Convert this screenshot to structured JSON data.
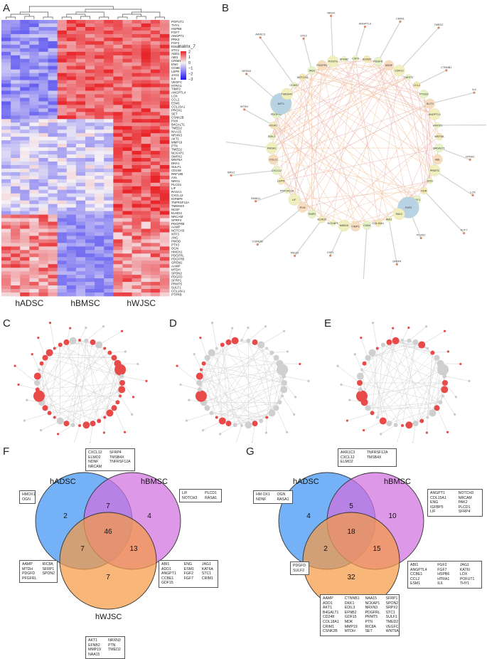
{
  "panels": {
    "A": "A",
    "B": "B",
    "C": "C",
    "D": "D",
    "E": "E",
    "F": "F",
    "G": "G"
  },
  "heatmap": {
    "legend_title": "matrix_7",
    "legend_ticks": [
      "2",
      "1",
      "0",
      "−1",
      "−2",
      "−3"
    ],
    "groups": [
      "hADSC",
      "hBMSC",
      "hWJSC"
    ],
    "genes": [
      "POFUT1",
      "THY1",
      "HSPB6",
      "FGF7",
      "ANGPT1",
      "PRK2",
      "FGF2",
      "EDIL3",
      "STC1",
      "ADD1",
      "ABI1",
      "CRIM1",
      "ENG",
      "CCBE1",
      "LEPR",
      "JAG1",
      "IL6",
      "VEGFC",
      "HTRA1",
      "TIMP2",
      "ANGPTL4",
      "LOX",
      "CCL2",
      "ESM1",
      "COL15A1",
      "PROX1",
      "SET",
      "CSNK2B",
      "PXN",
      "B4GALT1",
      "TMED2",
      "NAA15",
      "NRXN3",
      "AKT1",
      "MMP19",
      "PTN",
      "TMED2",
      "NCKAP1",
      "SMPX2",
      "WNT5A",
      "DKK1",
      "SULF1",
      "CD248",
      "RNF186",
      "AXL",
      "NRG1",
      "PLCD1",
      "LIF",
      "RASA1",
      "CXCL12",
      "IGFBP9",
      "TNFRSF12A",
      "TMEM4X",
      "NCEF",
      "ELMO2",
      "NRCAM",
      "SFRP4",
      "PDGFRB",
      "AAMP",
      "NOTCH3",
      "NTF3",
      "ANG",
      "PMOD",
      "PTX3",
      "OGN",
      "HMOX1",
      "PDGFRL",
      "PDGFRB",
      "GREM1",
      "AAMP",
      "MTDH",
      "SPON2",
      "PDGFD",
      "SFRP1",
      "PRMT5",
      "SULF1",
      "COL18A1",
      "PTPRB"
    ]
  },
  "network_b": {
    "nodes": [
      "CSF6",
      "SUSD5",
      "PDGFD",
      "NDNF",
      "CDH13",
      "TWIST2",
      "CCL2",
      "PTGS2",
      "SLIT2",
      "ANGPTL1",
      "HMOX1",
      "WNT5A",
      "B4GALT1",
      "ABL",
      "PRMT5",
      "ENG",
      "KDR",
      "THY1",
      "FGF2",
      "PAK2",
      "ABI1",
      "COL15A1",
      "CXB4",
      "TIMP1",
      "MAB15",
      "NCKAP1",
      "ELMO2",
      "TIMP2",
      "PXN",
      "LIF",
      "PPP1R12A",
      "LEPR",
      "CXCL12",
      "COL21",
      "RASA1",
      "EDIL3",
      "VEGFC",
      "PDGFRB",
      "AKT1",
      "TMEM4X",
      "CCBE1",
      "NOTCH3",
      "JAG1",
      "PDGFRL",
      "POSTN",
      "EPHB2",
      "ANGPTL4",
      "CRIM1",
      "TMED2",
      "CTNNB1",
      "IL6",
      "HSPB6",
      "HTRA1",
      "LOX",
      "FCF7",
      "PLOD2",
      "SFRP4",
      "MDK",
      "CSF1",
      "PIEZO",
      "CSNK2B",
      "SMAD1",
      "NRG1",
      "PTPRS",
      "MTDH",
      "NRXN3",
      "AKRIC3",
      "STE2",
      "NRG4"
    ]
  },
  "venn_f": {
    "labels": [
      "hADSC",
      "hBMSC",
      "hWJSC"
    ],
    "counts": {
      "a": "2",
      "b": "4",
      "c": "7",
      "ab": "7",
      "ac": "7",
      "bc": "13",
      "abc": "46"
    },
    "boxes": {
      "top": [
        "CXCL12",
        "SFRP4",
        "ELMO2",
        "TMSB4X",
        "NDNF",
        "TNFRSF12A",
        "NRCAM"
      ],
      "left": [
        "HMOX1",
        "OGN"
      ],
      "right": [
        "LIF",
        "PLCD1",
        "NOTCH3",
        "RASA1"
      ],
      "bottom_left": [
        "AAMP",
        "RIC8A",
        "MTDH",
        "SFRP1",
        "PDGFD",
        "SPON2",
        "PFGFRL"
      ],
      "bottom_right": [
        "ABI1",
        "ENG",
        "JAG1",
        "ADD1",
        "ESM1",
        "KAT6A",
        "ANGPT1",
        "FGF2",
        "STC1",
        "CCBE1",
        "FGF7",
        "CRIM1",
        "GDF15"
      ],
      "bottom": [
        "AKT1",
        "NRXN3",
        "EFNB2",
        "PTN",
        "MMP19",
        "TMED2",
        "NAA15"
      ]
    }
  },
  "venn_g": {
    "labels": [
      "hADSC",
      "hBMSC",
      "hWJSC"
    ],
    "counts": {
      "a": "4",
      "b": "10",
      "c": "32",
      "ab": "5",
      "ac": "2",
      "bc": "15",
      "abc": "18"
    },
    "boxes": {
      "top": [
        "AKR1C3",
        "TNFRSF12A",
        "CXCL12",
        "TMSB4X",
        "ELMO2"
      ],
      "left": [
        "HM OX1",
        "OGN",
        "NDNF",
        "RASA1"
      ],
      "right": [
        "ANGPT1",
        "NOTCH3",
        "COL15A1",
        "NRCAM",
        "ENG",
        "PAK2",
        "IGFBP5",
        "PLCD1",
        "LIF",
        "SFRP4"
      ],
      "bottom_left": [
        "PDGFD",
        "SULF2"
      ],
      "bottom_right": [
        "ABI1",
        "FGF2",
        "JAG1",
        "ANGPTL4",
        "FGF7",
        "KAT6I",
        "CCBE1",
        "HSPB6",
        "LOX",
        "CCL2",
        "HTRA1",
        "POFUT1",
        "ESM1",
        "IL6",
        "THY1"
      ],
      "bottom": [
        "AAMP",
        "CTNNB1",
        "NAA15",
        "SFRP1",
        "ADD1",
        "DKK1",
        "NCKAP1",
        "SPON2",
        "AKT1",
        "EDIL3",
        "NRXN3",
        "SRPX2",
        "B4GALT1",
        "EFNB2",
        "PDGFRL",
        "STC1",
        "CD248",
        "GDF15",
        "PRMT5",
        "SULF1",
        "COL18A1",
        "MDK",
        "PTN",
        "TMED2",
        "CRIM1",
        "MMP19",
        "RIC8A",
        "VEGFC",
        "CSNK2B",
        "MTDH",
        "SET",
        "WNT5A"
      ]
    }
  },
  "colors": {
    "heat_high": "#e8262a",
    "heat_mid": "#f5f1f5",
    "heat_low": "#1c14ee",
    "venn_a": "#3f93f2",
    "venn_b": "#d070de",
    "venn_c": "#f59a45",
    "net_highlight": "#e84a4a",
    "net_gray": "#c8c8c8"
  }
}
